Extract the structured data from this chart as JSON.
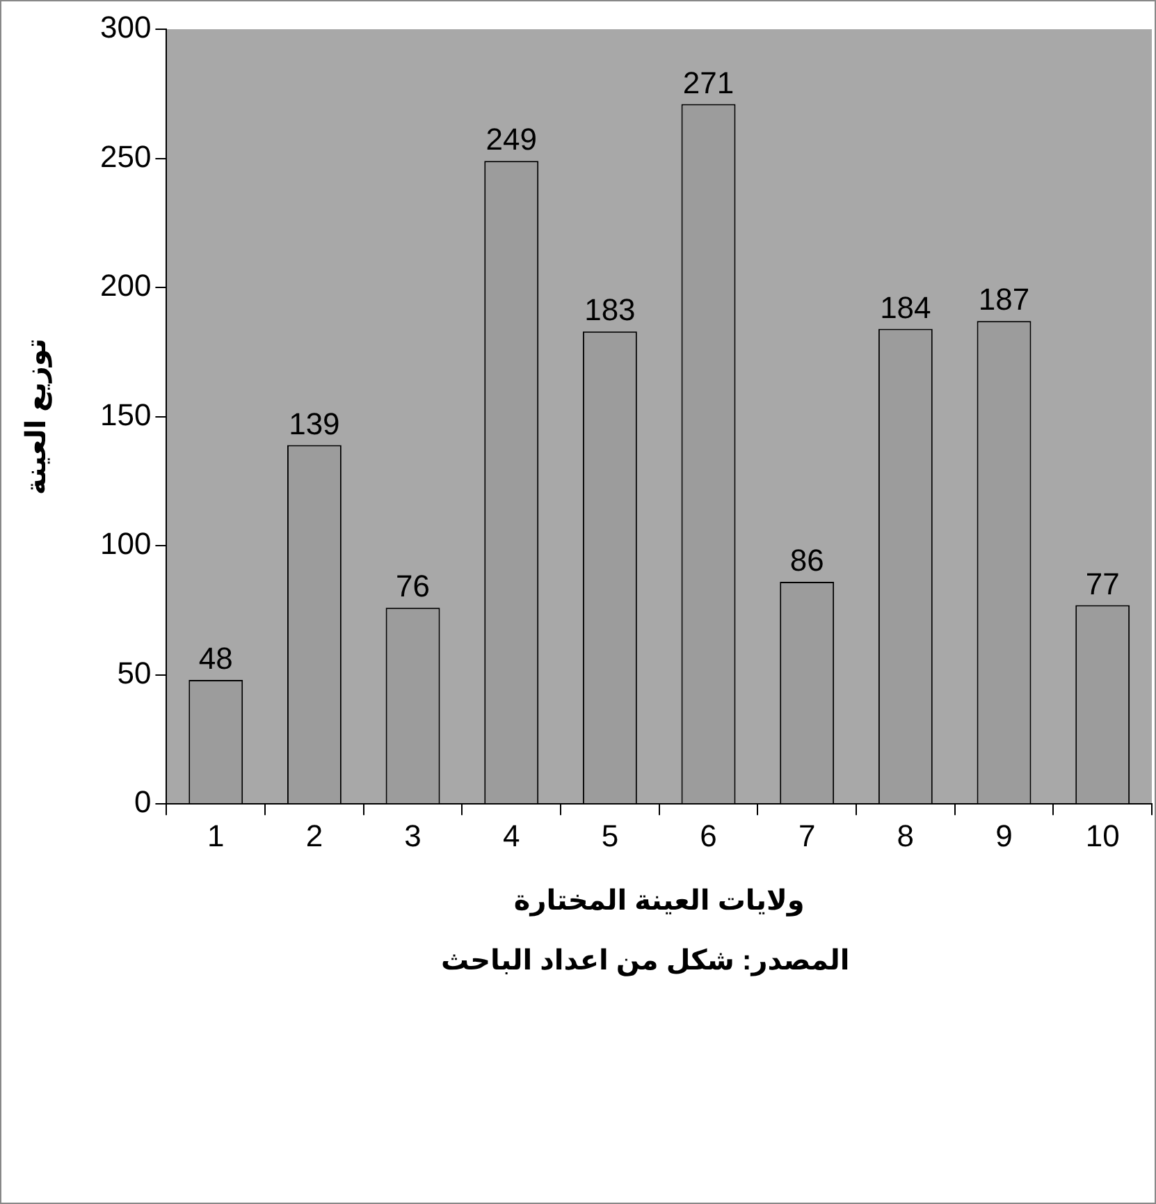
{
  "chart_data": {
    "type": "bar",
    "xlabel": "ولايات العينة المختارة",
    "ylabel": "توزيع العينة",
    "annotations": [
      "المصدر: شكل من اعداد الباحث"
    ],
    "categories": [
      "1",
      "2",
      "3",
      "4",
      "5",
      "6",
      "7",
      "8",
      "9",
      "10"
    ],
    "values": [
      48,
      139,
      76,
      249,
      183,
      271,
      86,
      184,
      187,
      77
    ],
    "color": "#9c9c9c",
    "ylim": [
      0,
      300
    ],
    "yticks": [
      0,
      50,
      100,
      150,
      200,
      250,
      300
    ],
    "grid": false,
    "legend": false,
    "data_labels": true
  }
}
